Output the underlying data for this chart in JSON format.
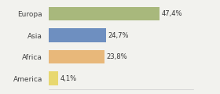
{
  "categories": [
    "Europa",
    "Asia",
    "Africa",
    "America"
  ],
  "values": [
    47.4,
    24.7,
    23.8,
    4.1
  ],
  "labels": [
    "47,4%",
    "24,7%",
    "23,8%",
    "4,1%"
  ],
  "bar_colors": [
    "#a8b87c",
    "#6e8fc0",
    "#e8b87a",
    "#e8d870"
  ],
  "background_color": "#f2f2ee",
  "figsize": [
    2.8,
    1.2
  ],
  "dpi": 100
}
